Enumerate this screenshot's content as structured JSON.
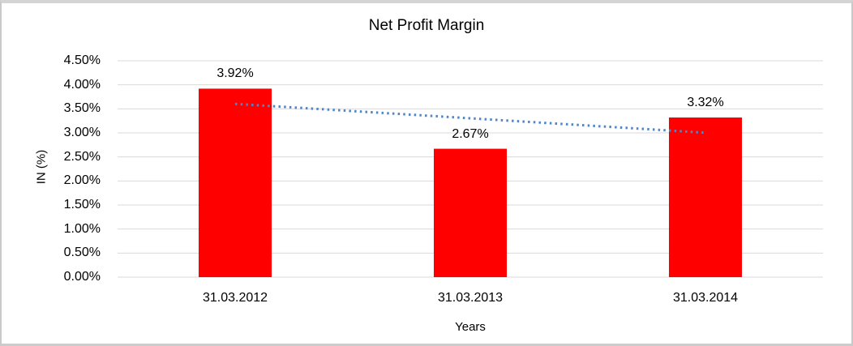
{
  "chart_data": {
    "type": "bar",
    "title": "Net Profit Margin",
    "xlabel": "Years",
    "ylabel": "IN (%)",
    "categories": [
      "31.03.2012",
      "31.03.2013",
      "31.03.2014"
    ],
    "values": [
      3.92,
      2.67,
      3.32
    ],
    "data_labels": [
      "3.92%",
      "2.67%",
      "3.32%"
    ],
    "ylim": [
      0,
      4.5
    ],
    "ytick_step": 0.5,
    "ytick_labels": [
      "0.00%",
      "0.50%",
      "1.00%",
      "1.50%",
      "2.00%",
      "2.50%",
      "3.00%",
      "3.50%",
      "4.00%",
      "4.50%"
    ],
    "grid": true,
    "legend": "none",
    "bar_color": "#ff0000",
    "gridline_color": "#d9d9d9",
    "trendline": {
      "type": "linear",
      "style": "dotted",
      "color": "#4f86c8",
      "start_value": 3.6,
      "end_value": 3.0
    }
  }
}
